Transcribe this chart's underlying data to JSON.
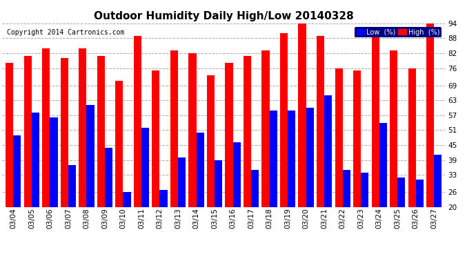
{
  "title": "Outdoor Humidity Daily High/Low 20140328",
  "copyright": "Copyright 2014 Cartronics.com",
  "dates": [
    "03/04",
    "03/05",
    "03/06",
    "03/07",
    "03/08",
    "03/09",
    "03/10",
    "03/11",
    "03/12",
    "03/13",
    "03/14",
    "03/15",
    "03/16",
    "03/17",
    "03/18",
    "03/19",
    "03/20",
    "03/21",
    "03/22",
    "03/23",
    "03/24",
    "03/25",
    "03/26",
    "03/27"
  ],
  "high": [
    78,
    81,
    84,
    80,
    84,
    81,
    71,
    89,
    75,
    83,
    82,
    73,
    78,
    81,
    83,
    90,
    95,
    89,
    76,
    75,
    91,
    83,
    76,
    95
  ],
  "low": [
    49,
    58,
    56,
    37,
    61,
    44,
    26,
    52,
    27,
    40,
    50,
    39,
    46,
    35,
    59,
    59,
    60,
    65,
    35,
    34,
    54,
    32,
    31,
    41
  ],
  "ylim_min": 20,
  "ylim_max": 94,
  "yticks": [
    20,
    26,
    33,
    39,
    45,
    51,
    57,
    63,
    69,
    76,
    82,
    88,
    94
  ],
  "bar_width": 0.42,
  "high_color": "#FF0000",
  "low_color": "#0000FF",
  "bg_color": "#FFFFFF",
  "grid_color": "#AAAAAA",
  "legend_low_label": "Low  (%)",
  "legend_high_label": "High  (%)",
  "title_fontsize": 11,
  "tick_fontsize": 7.5,
  "copyright_fontsize": 7
}
